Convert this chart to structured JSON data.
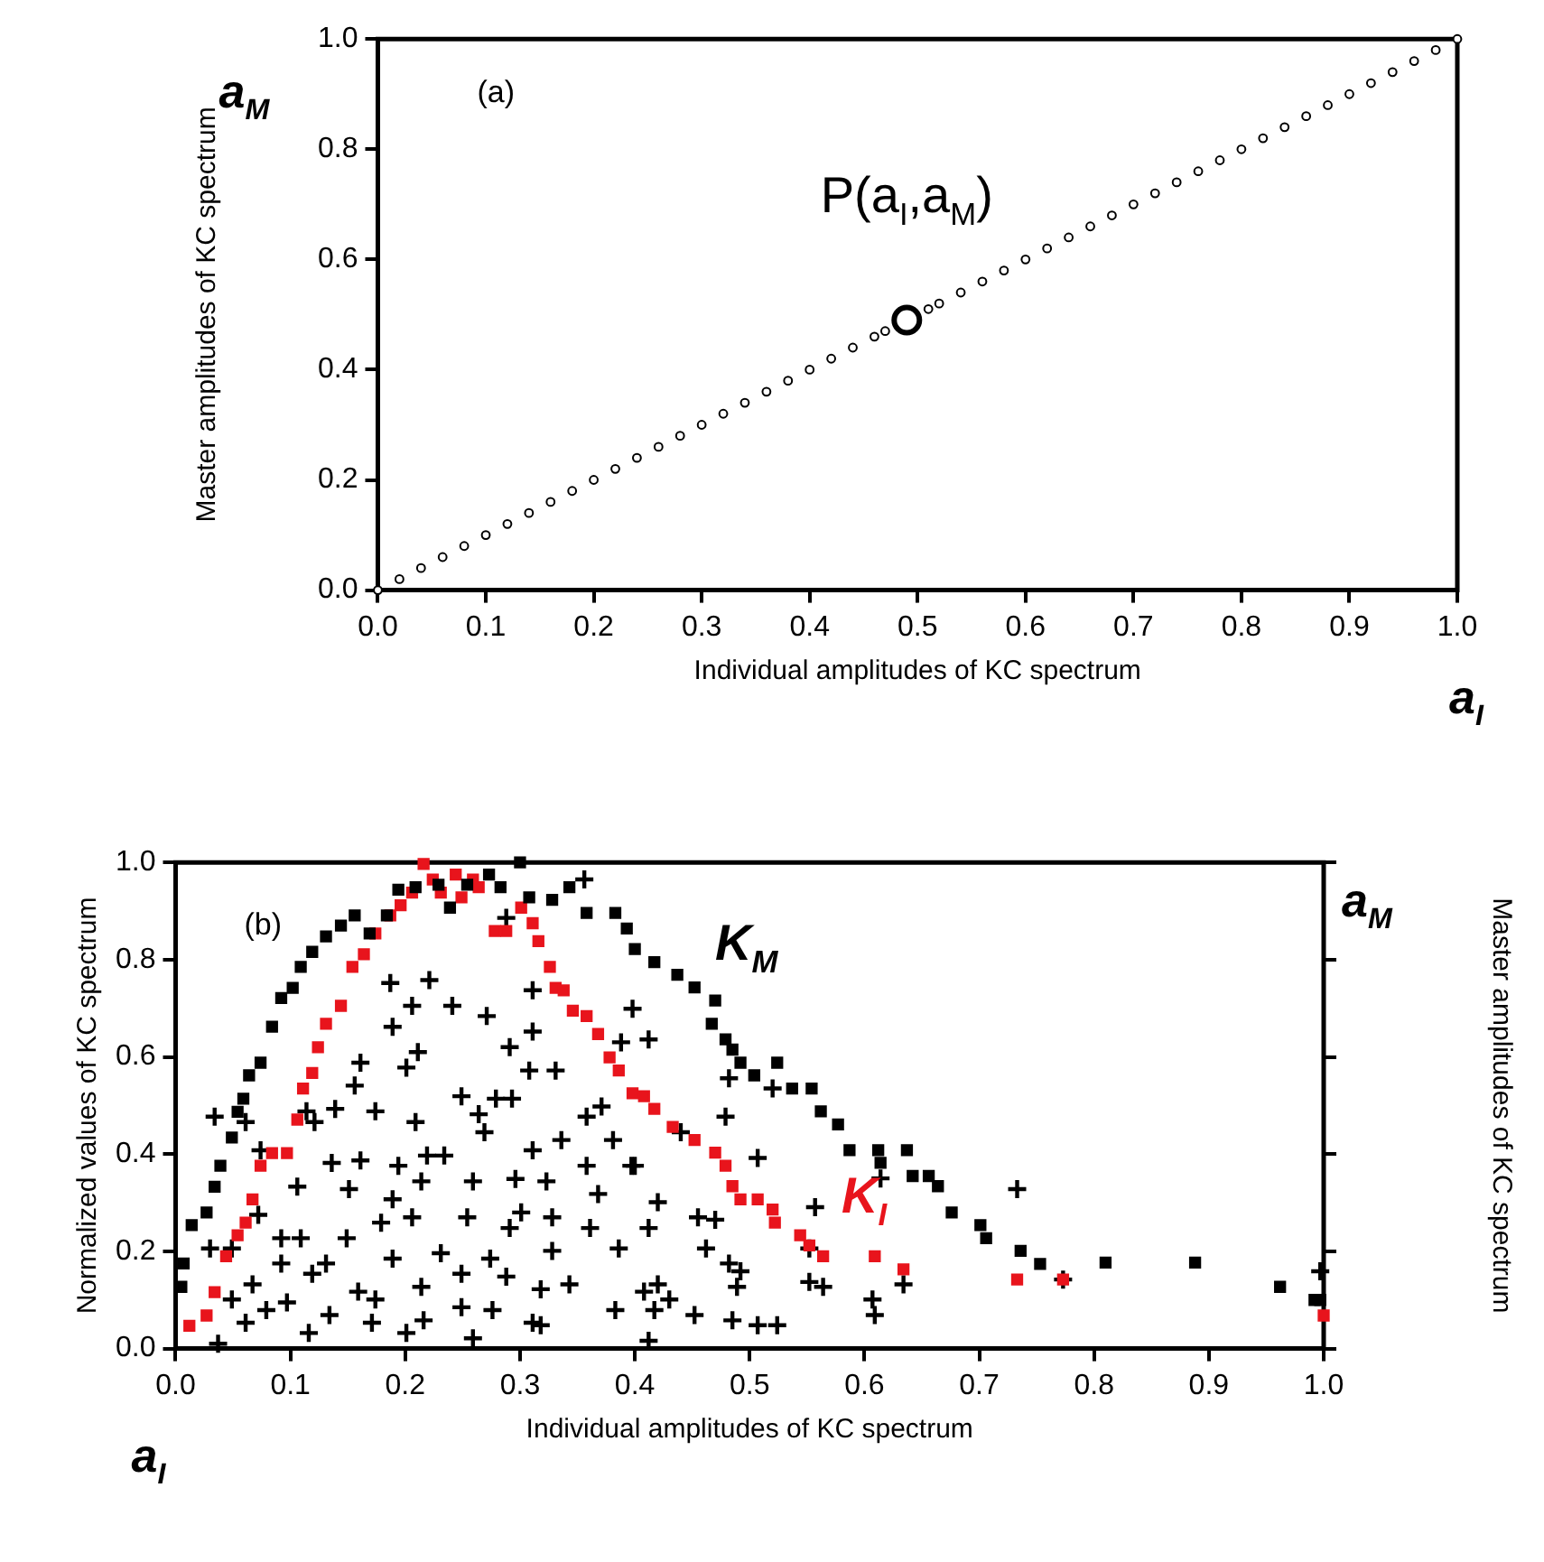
{
  "chart_data": [
    {
      "type": "scatter",
      "xlabel": "Individual amplitudes of KC spectrum",
      "ylabel": "Master amplitudes of KC spectrum",
      "xlim": [
        0,
        1
      ],
      "ylim": [
        0,
        1
      ],
      "xticks": [
        {
          "value": 0,
          "label": "0.0"
        },
        {
          "value": 0.1,
          "label": "0.1"
        },
        {
          "value": 0.2,
          "label": "0.2"
        },
        {
          "value": 0.3,
          "label": "0.3"
        },
        {
          "value": 0.4,
          "label": "0.4"
        },
        {
          "value": 0.5,
          "label": "0.5"
        },
        {
          "value": 0.6,
          "label": "0.6"
        },
        {
          "value": 0.7,
          "label": "0.7"
        },
        {
          "value": 0.8,
          "label": "0.8"
        },
        {
          "value": 0.9,
          "label": "0.9"
        },
        {
          "value": 1,
          "label": "1.0"
        }
      ],
      "yticks": [
        {
          "value": 0,
          "label": "0.0"
        },
        {
          "value": 0.2,
          "label": "0.2"
        },
        {
          "value": 0.4,
          "label": "0.4"
        },
        {
          "value": 0.6,
          "label": "0.6"
        },
        {
          "value": 0.8,
          "label": "0.8"
        },
        {
          "value": 1,
          "label": "1.0"
        }
      ],
      "annotations": [
        "(a)",
        "a$_{M}$",
        "a$_{I}$",
        {
          "text": "P(a$_{I}$,a$_{M}$)",
          "x": 0.49,
          "y": 0.49
        }
      ],
      "series": [
        {
          "color": "#000000",
          "marker": "circle",
          "x": [
            0,
            0.02,
            0.04,
            0.06,
            0.08,
            0.1,
            0.12,
            0.14,
            0.16,
            0.18,
            0.2,
            0.22,
            0.24,
            0.26,
            0.28,
            0.3,
            0.32,
            0.34,
            0.36,
            0.38,
            0.4,
            0.42,
            0.44,
            0.46,
            0.47,
            0.51,
            0.52,
            0.54,
            0.56,
            0.58,
            0.6,
            0.62,
            0.64,
            0.66,
            0.68,
            0.7,
            0.72,
            0.74,
            0.76,
            0.78,
            0.8,
            0.82,
            0.84,
            0.86,
            0.88,
            0.9,
            0.92,
            0.94,
            0.96,
            0.98,
            1
          ],
          "values": [
            0,
            0.02,
            0.04,
            0.06,
            0.08,
            0.1,
            0.12,
            0.14,
            0.16,
            0.18,
            0.2,
            0.22,
            0.24,
            0.26,
            0.28,
            0.3,
            0.32,
            0.34,
            0.36,
            0.38,
            0.4,
            0.42,
            0.44,
            0.46,
            0.47,
            0.51,
            0.52,
            0.54,
            0.56,
            0.58,
            0.6,
            0.62,
            0.64,
            0.66,
            0.68,
            0.7,
            0.72,
            0.74,
            0.76,
            0.78,
            0.8,
            0.82,
            0.84,
            0.86,
            0.88,
            0.9,
            0.92,
            0.94,
            0.96,
            0.98,
            1
          ]
        }
      ]
    },
    {
      "type": "scatter",
      "xlabel": "Individual amplitudes of KC spectrum",
      "ylabel": "Normalized values of KC spectrum",
      "y2label": "Master amplitudes of KC spectrum",
      "xlim": [
        0,
        1
      ],
      "ylim": [
        0,
        1
      ],
      "xticks": [
        {
          "value": 0,
          "label": "0.0"
        },
        {
          "value": 0.1,
          "label": "0.1"
        },
        {
          "value": 0.2,
          "label": "0.2"
        },
        {
          "value": 0.3,
          "label": "0.3"
        },
        {
          "value": 0.4,
          "label": "0.4"
        },
        {
          "value": 0.5,
          "label": "0.5"
        },
        {
          "value": 0.6,
          "label": "0.6"
        },
        {
          "value": 0.7,
          "label": "0.7"
        },
        {
          "value": 0.8,
          "label": "0.8"
        },
        {
          "value": 0.9,
          "label": "0.9"
        },
        {
          "value": 1,
          "label": "1.0"
        }
      ],
      "yticks": [
        {
          "value": 0,
          "label": "0.0"
        },
        {
          "value": 0.2,
          "label": "0.2"
        },
        {
          "value": 0.4,
          "label": "0.4"
        },
        {
          "value": 0.6,
          "label": "0.6"
        },
        {
          "value": 0.8,
          "label": "0.8"
        },
        {
          "value": 1,
          "label": "1.0"
        }
      ],
      "annotations": [
        "(b)",
        "a$_{I}$",
        "a$_{M}$"
      ],
      "series": [
        {
          "name": "K$_{M}$",
          "color": "#000000",
          "marker": "square",
          "x": [
            0.005,
            0.007,
            0.014,
            0.027,
            0.034,
            0.039,
            0.049,
            0.054,
            0.059,
            0.064,
            0.074,
            0.084,
            0.092,
            0.102,
            0.109,
            0.119,
            0.131,
            0.144,
            0.156,
            0.169,
            0.184,
            0.194,
            0.209,
            0.229,
            0.239,
            0.254,
            0.273,
            0.283,
            0.3,
            0.308,
            0.328,
            0.343,
            0.358,
            0.383,
            0.393,
            0.4,
            0.417,
            0.437,
            0.452,
            0.47,
            0.467,
            0.479,
            0.485,
            0.492,
            0.504,
            0.524,
            0.537,
            0.554,
            0.562,
            0.577,
            0.587,
            0.612,
            0.614,
            0.637,
            0.642,
            0.656,
            0.664,
            0.676,
            0.701,
            0.706,
            0.736,
            0.753,
            0.81,
            0.888,
            0.962,
            0.992,
            0.997
          ],
          "values": [
            0.127,
            0.175,
            0.254,
            0.28,
            0.333,
            0.376,
            0.434,
            0.487,
            0.514,
            0.562,
            0.588,
            0.662,
            0.721,
            0.742,
            0.785,
            0.816,
            0.848,
            0.87,
            0.891,
            0.854,
            0.891,
            0.944,
            0.949,
            0.954,
            0.907,
            0.954,
            0.975,
            0.949,
            1.0,
            0.928,
            0.923,
            0.949,
            0.896,
            0.896,
            0.864,
            0.822,
            0.795,
            0.769,
            0.743,
            0.716,
            0.668,
            0.636,
            0.615,
            0.588,
            0.562,
            0.588,
            0.535,
            0.535,
            0.488,
            0.461,
            0.408,
            0.408,
            0.382,
            0.408,
            0.355,
            0.355,
            0.334,
            0.28,
            0.254,
            0.227,
            0.201,
            0.174,
            0.177,
            0.177,
            0.127,
            0.1,
            0.1
          ]
        },
        {
          "name": "K$_{I}$",
          "color": "#e8141c",
          "marker": "square",
          "x": [
            0.012,
            0.027,
            0.034,
            0.044,
            0.054,
            0.061,
            0.067,
            0.074,
            0.084,
            0.097,
            0.106,
            0.111,
            0.119,
            0.124,
            0.131,
            0.144,
            0.154,
            0.164,
            0.174,
            0.187,
            0.196,
            0.206,
            0.216,
            0.224,
            0.231,
            0.244,
            0.249,
            0.259,
            0.264,
            0.278,
            0.288,
            0.301,
            0.311,
            0.316,
            0.326,
            0.331,
            0.338,
            0.346,
            0.358,
            0.368,
            0.378,
            0.386,
            0.398,
            0.408,
            0.417,
            0.433,
            0.452,
            0.47,
            0.479,
            0.485,
            0.492,
            0.507,
            0.52,
            0.522,
            0.544,
            0.552,
            0.564,
            0.609,
            0.634,
            0.733,
            0.773,
            1.0
          ],
          "values": [
            0.047,
            0.068,
            0.116,
            0.19,
            0.233,
            0.259,
            0.307,
            0.376,
            0.402,
            0.402,
            0.471,
            0.535,
            0.567,
            0.62,
            0.668,
            0.705,
            0.785,
            0.811,
            0.854,
            0.891,
            0.912,
            0.938,
            0.997,
            0.965,
            0.938,
            0.975,
            0.928,
            0.965,
            0.949,
            0.859,
            0.859,
            0.907,
            0.875,
            0.838,
            0.785,
            0.742,
            0.737,
            0.695,
            0.684,
            0.647,
            0.599,
            0.572,
            0.525,
            0.519,
            0.493,
            0.456,
            0.429,
            0.403,
            0.376,
            0.334,
            0.307,
            0.307,
            0.286,
            0.259,
            0.233,
            0.212,
            0.19,
            0.19,
            0.163,
            0.142,
            0.142,
            0.068
          ]
        },
        {
          "color": "#000000",
          "marker": "cross",
          "x": [
            0.034,
            0.061,
            0.074,
            0.03,
            0.049,
            0.072,
            0.092,
            0.092,
            0.067,
            0.049,
            0.079,
            0.061,
            0.037,
            0.097,
            0.109,
            0.106,
            0.114,
            0.121,
            0.136,
            0.131,
            0.119,
            0.116,
            0.134,
            0.151,
            0.156,
            0.139,
            0.161,
            0.149,
            0.159,
            0.174,
            0.171,
            0.174,
            0.161,
            0.179,
            0.189,
            0.189,
            0.187,
            0.201,
            0.206,
            0.221,
            0.194,
            0.209,
            0.214,
            0.206,
            0.189,
            0.201,
            0.214,
            0.211,
            0.216,
            0.219,
            0.231,
            0.234,
            0.241,
            0.249,
            0.249,
            0.254,
            0.259,
            0.249,
            0.264,
            0.269,
            0.259,
            0.271,
            0.276,
            0.279,
            0.274,
            0.291,
            0.291,
            0.293,
            0.288,
            0.296,
            0.308,
            0.311,
            0.311,
            0.311,
            0.311,
            0.301,
            0.318,
            0.318,
            0.323,
            0.328,
            0.331,
            0.336,
            0.328,
            0.343,
            0.358,
            0.358,
            0.361,
            0.356,
            0.368,
            0.371,
            0.381,
            0.383,
            0.386,
            0.4,
            0.388,
            0.288,
            0.398,
            0.412,
            0.397,
            0.44,
            0.482,
            0.479,
            0.507,
            0.42,
            0.412,
            0.455,
            0.47,
            0.462,
            0.482,
            0.492,
            0.489,
            0.42,
            0.408,
            0.43,
            0.417,
            0.452,
            0.485,
            0.507,
            0.524,
            0.412,
            0.557,
            0.552,
            0.552,
            0.564,
            0.52,
            0.614,
            0.607,
            0.609,
            0.634,
            0.733,
            0.773,
            0.997
          ],
          "values": [
            0.477,
            0.466,
            0.408,
            0.206,
            0.206,
            0.275,
            0.227,
            0.175,
            0.132,
            0.101,
            0.079,
            0.053,
            0.01,
            0.095,
            0.227,
            0.333,
            0.488,
            0.466,
            0.382,
            0.175,
            0.154,
            0.032,
            0.069,
            0.328,
            0.541,
            0.493,
            0.387,
            0.227,
            0.117,
            0.101,
            0.053,
            0.488,
            0.588,
            0.259,
            0.307,
            0.662,
            0.752,
            0.578,
            0.705,
            0.758,
            0.376,
            0.466,
            0.344,
            0.27,
            0.185,
            0.032,
            0.127,
            0.61,
            0.058,
            0.397,
            0.196,
            0.397,
            0.705,
            0.519,
            0.085,
            0.27,
            0.344,
            0.154,
            0.482,
            0.445,
            0.021,
            0.684,
            0.079,
            0.514,
            0.185,
            0.62,
            0.248,
            0.514,
            0.148,
            0.349,
            0.572,
            0.652,
            0.737,
            0.408,
            0.053,
            0.28,
            0.122,
            0.048,
            0.344,
            0.27,
            0.572,
            0.429,
            0.201,
            0.132,
            0.376,
            0.477,
            0.248,
            0.965,
            0.318,
            0.498,
            0.429,
            0.079,
            0.206,
            0.376,
            0.63,
            0.886,
            0.699,
            0.636,
            0.376,
            0.445,
            0.556,
            0.477,
            0.392,
            0.301,
            0.248,
            0.27,
            0.265,
            0.206,
            0.175,
            0.159,
            0.127,
            0.132,
            0.117,
            0.101,
            0.079,
            0.069,
            0.058,
            0.048,
            0.048,
            0.016,
            0.291,
            0.206,
            0.137,
            0.127,
            0.535,
            0.35,
            0.101,
            0.069,
            0.132,
            0.328,
            0.142,
            0.159
          ]
        }
      ]
    }
  ]
}
